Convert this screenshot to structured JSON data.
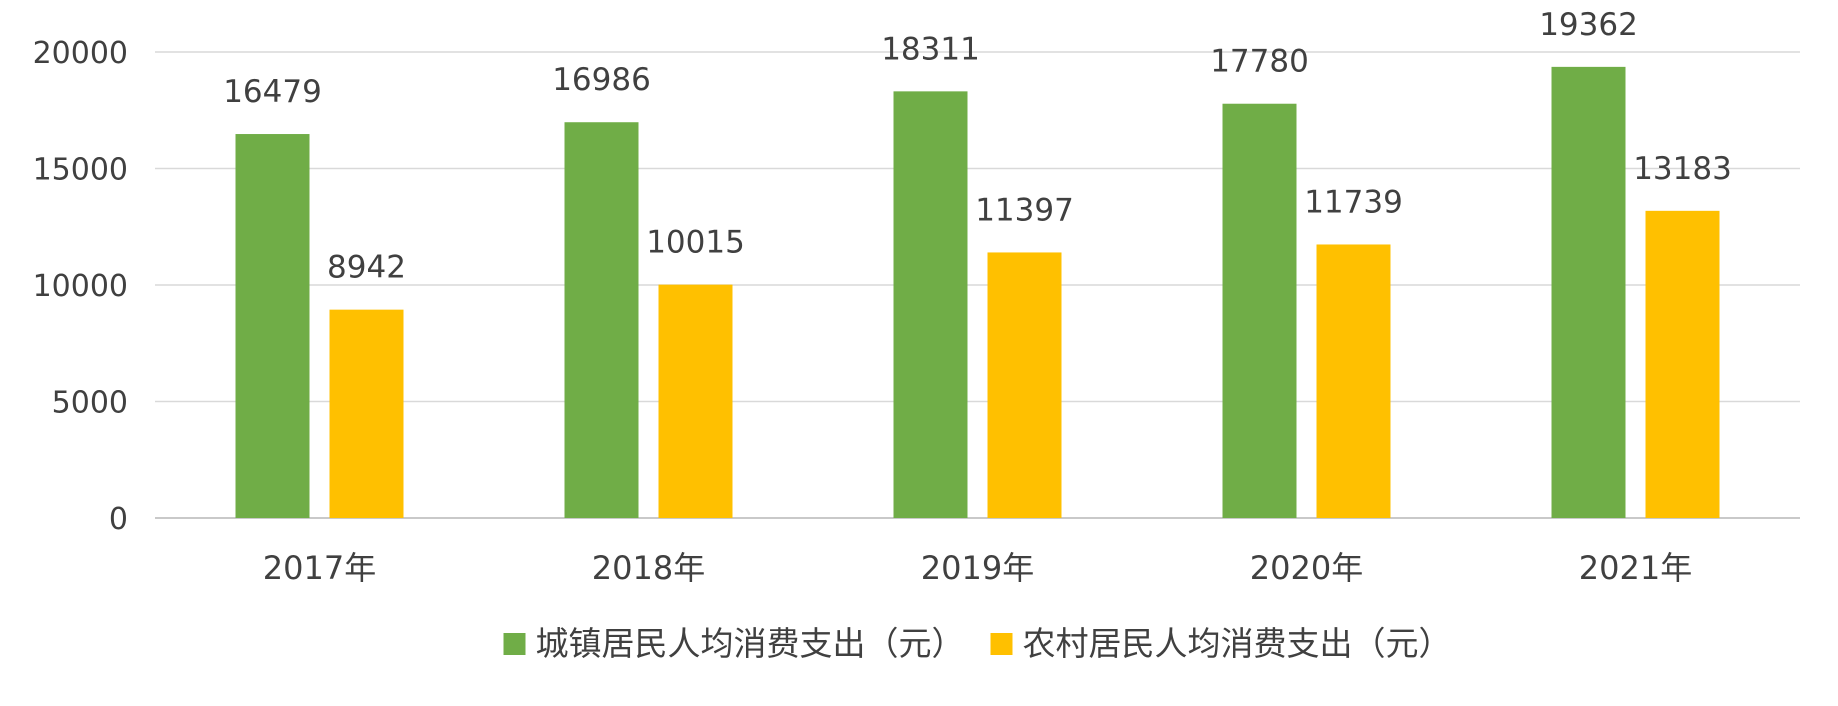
{
  "chart_data": {
    "type": "bar",
    "categories": [
      "2017年",
      "2018年",
      "2019年",
      "2020年",
      "2021年"
    ],
    "series": [
      {
        "name": "城镇居民人均消费支出（元）",
        "color": "#70ad47",
        "values": [
          16479,
          16986,
          18311,
          17780,
          19362
        ]
      },
      {
        "name": "农村居民人均消费支出（元）",
        "color": "#ffc000",
        "values": [
          8942,
          10015,
          11397,
          11739,
          13183
        ]
      }
    ],
    "ylim": [
      0,
      20000
    ],
    "yticks": [
      0,
      5000,
      10000,
      15000,
      20000
    ],
    "grid": true,
    "legend_position": "bottom",
    "data_labels": true
  }
}
